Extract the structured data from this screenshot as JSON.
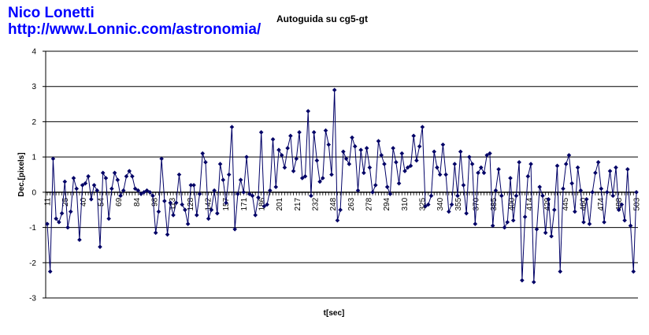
{
  "header": {
    "author": "Nico Lonetti",
    "url": "http://www.Lonnic.com/astronomia/"
  },
  "colors": {
    "series": "#000066",
    "grid": "#000000",
    "header_text": "#0000ff"
  },
  "chart_data": {
    "type": "line",
    "title": "Autoguida su cg5-gt",
    "xlabel": "t[sec]",
    "ylabel": "Dec.[pixels]",
    "ylim": [
      -3,
      4
    ],
    "yticks": [
      -3,
      -2,
      -1,
      0,
      1,
      2,
      3,
      4
    ],
    "grid": "horizontal",
    "xtick_labels": [
      "11",
      "25",
      "40",
      "54",
      "69",
      "84",
      "98",
      "113",
      "128",
      "142",
      "157",
      "171",
      "186",
      "201",
      "217",
      "232",
      "248",
      "263",
      "278",
      "294",
      "310",
      "325",
      "340",
      "355",
      "370",
      "385",
      "400",
      "414",
      "429",
      "445",
      "460",
      "474",
      "488",
      "503"
    ],
    "series": [
      {
        "marker": "diamond",
        "values": [
          -0.9,
          -2.25,
          0.95,
          -0.75,
          -0.85,
          -0.6,
          0.3,
          -1.0,
          -0.55,
          0.4,
          0.1,
          -1.35,
          0.2,
          0.25,
          0.45,
          -0.2,
          0.2,
          0.05,
          -1.55,
          0.55,
          0.4,
          -0.75,
          0.1,
          0.55,
          0.35,
          -0.1,
          0.05,
          0.45,
          0.6,
          0.45,
          0.1,
          0.05,
          -0.05,
          0.0,
          0.05,
          0.0,
          -0.1,
          -1.15,
          -0.55,
          0.95,
          -0.25,
          -1.2,
          -0.3,
          -0.65,
          -0.3,
          0.5,
          -0.35,
          -0.5,
          -0.9,
          0.2,
          0.2,
          -0.65,
          -0.05,
          1.1,
          0.85,
          -0.75,
          -0.5,
          0.05,
          -0.6,
          0.8,
          0.35,
          -0.3,
          0.5,
          1.85,
          -1.05,
          -0.05,
          0.35,
          0.0,
          1.0,
          -0.05,
          -0.1,
          -0.65,
          -0.15,
          1.7,
          -0.4,
          -0.35,
          0.05,
          1.5,
          0.15,
          1.2,
          1.05,
          0.7,
          1.25,
          1.6,
          0.6,
          0.95,
          1.7,
          0.4,
          0.45,
          2.3,
          -0.1,
          1.7,
          0.9,
          0.3,
          0.4,
          1.75,
          1.35,
          0.5,
          2.9,
          -0.8,
          -0.5,
          1.15,
          0.95,
          0.8,
          1.55,
          1.3,
          0.05,
          1.2,
          0.55,
          1.25,
          0.7,
          0.0,
          0.2,
          1.45,
          1.05,
          0.8,
          0.15,
          -0.05,
          1.25,
          0.85,
          0.25,
          1.1,
          0.6,
          0.7,
          0.75,
          1.6,
          0.9,
          1.3,
          1.85,
          -0.4,
          -0.35,
          -0.1,
          1.15,
          0.7,
          0.5,
          1.35,
          0.5,
          -0.55,
          -0.35,
          0.8,
          -0.1,
          1.15,
          0.2,
          -0.6,
          1.0,
          0.8,
          -0.9,
          0.55,
          0.7,
          0.55,
          1.05,
          1.1,
          -0.95,
          0.05,
          0.65,
          -0.1,
          -1.0,
          -0.85,
          0.4,
          -0.8,
          -0.1,
          0.85,
          -2.5,
          -0.7,
          0.45,
          0.8,
          -2.55,
          -1.05,
          0.15,
          -0.1,
          -1.15,
          -0.2,
          -1.25,
          -0.5,
          0.75,
          -2.25,
          0.1,
          0.8,
          1.05,
          0.25,
          -0.55,
          0.7,
          0.05,
          -0.85,
          -0.2,
          -0.9,
          0.0,
          0.55,
          0.85,
          0.1,
          -0.85,
          0.0,
          0.6,
          -0.1,
          0.7,
          -0.5,
          -0.35,
          -0.8,
          0.65,
          -0.95,
          -2.25,
          0.0
        ]
      }
    ]
  }
}
